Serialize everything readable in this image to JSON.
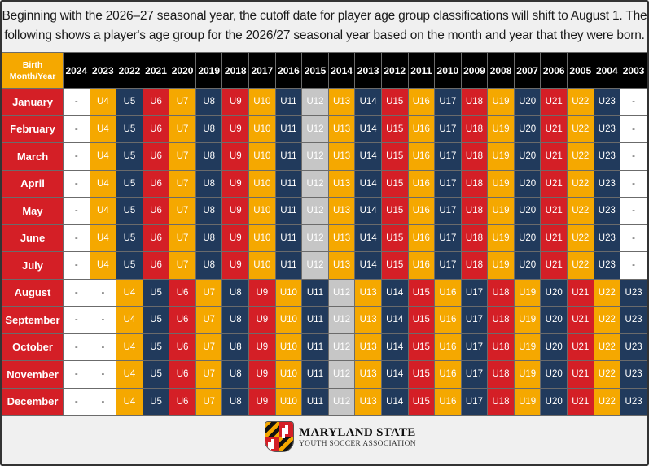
{
  "title_line1": "Beginning with the 2026–27 seasonal year, the cutoff date for player age group classifications will shift to August 1. The",
  "title_line2": "following shows a player's age group for the 2026/27 seasonal year based on the month and year that they were born.",
  "table": {
    "corner_label_line1": "Birth",
    "corner_label_line2": "Month/Year",
    "years": [
      "2024",
      "2023",
      "2022",
      "2021",
      "2020",
      "2019",
      "2018",
      "2017",
      "2016",
      "2015",
      "2014",
      "2013",
      "2012",
      "2011",
      "2010",
      "2009",
      "2008",
      "2007",
      "2006",
      "2005",
      "2004",
      "2003"
    ],
    "rows": [
      {
        "month": "January",
        "values": [
          "-",
          "U4",
          "U5",
          "U6",
          "U7",
          "U8",
          "U9",
          "U10",
          "U11",
          "U12",
          "U13",
          "U14",
          "U15",
          "U16",
          "U17",
          "U18",
          "U19",
          "U20",
          "U21",
          "U22",
          "U23",
          "-"
        ]
      },
      {
        "month": "February",
        "values": [
          "-",
          "U4",
          "U5",
          "U6",
          "U7",
          "U8",
          "U9",
          "U10",
          "U11",
          "U12",
          "U13",
          "U14",
          "U15",
          "U16",
          "U17",
          "U18",
          "U19",
          "U20",
          "U21",
          "U22",
          "U23",
          "-"
        ]
      },
      {
        "month": "March",
        "values": [
          "-",
          "U4",
          "U5",
          "U6",
          "U7",
          "U8",
          "U9",
          "U10",
          "U11",
          "U12",
          "U13",
          "U14",
          "U15",
          "U16",
          "U17",
          "U18",
          "U19",
          "U20",
          "U21",
          "U22",
          "U23",
          "-"
        ]
      },
      {
        "month": "April",
        "values": [
          "-",
          "U4",
          "U5",
          "U6",
          "U7",
          "U8",
          "U9",
          "U10",
          "U11",
          "U12",
          "U13",
          "U14",
          "U15",
          "U16",
          "U17",
          "U18",
          "U19",
          "U20",
          "U21",
          "U22",
          "U23",
          "-"
        ]
      },
      {
        "month": "May",
        "values": [
          "-",
          "U4",
          "U5",
          "U6",
          "U7",
          "U8",
          "U9",
          "U10",
          "U11",
          "U12",
          "U13",
          "U14",
          "U15",
          "U16",
          "U17",
          "U18",
          "U19",
          "U20",
          "U21",
          "U22",
          "U23",
          "-"
        ]
      },
      {
        "month": "June",
        "values": [
          "-",
          "U4",
          "U5",
          "U6",
          "U7",
          "U8",
          "U9",
          "U10",
          "U11",
          "U12",
          "U13",
          "U14",
          "U15",
          "U16",
          "U17",
          "U18",
          "U19",
          "U20",
          "U21",
          "U22",
          "U23",
          "-"
        ]
      },
      {
        "month": "July",
        "values": [
          "-",
          "U4",
          "U5",
          "U6",
          "U7",
          "U8",
          "U9",
          "U10",
          "U11",
          "U12",
          "U13",
          "U14",
          "U15",
          "U16",
          "U17",
          "U18",
          "U19",
          "U20",
          "U21",
          "U22",
          "U23",
          "-"
        ]
      },
      {
        "month": "August",
        "values": [
          "-",
          "-",
          "U4",
          "U5",
          "U6",
          "U7",
          "U8",
          "U9",
          "U10",
          "U11",
          "U12",
          "U13",
          "U14",
          "U15",
          "U16",
          "U17",
          "U18",
          "U19",
          "U20",
          "U21",
          "U22",
          "U23"
        ]
      },
      {
        "month": "September",
        "values": [
          "-",
          "-",
          "U4",
          "U5",
          "U6",
          "U7",
          "U8",
          "U9",
          "U10",
          "U11",
          "U12",
          "U13",
          "U14",
          "U15",
          "U16",
          "U17",
          "U18",
          "U19",
          "U20",
          "U21",
          "U22",
          "U23"
        ]
      },
      {
        "month": "October",
        "values": [
          "-",
          "-",
          "U4",
          "U5",
          "U6",
          "U7",
          "U8",
          "U9",
          "U10",
          "U11",
          "U12",
          "U13",
          "U14",
          "U15",
          "U16",
          "U17",
          "U18",
          "U19",
          "U20",
          "U21",
          "U22",
          "U23"
        ]
      },
      {
        "month": "November",
        "values": [
          "-",
          "-",
          "U4",
          "U5",
          "U6",
          "U7",
          "U8",
          "U9",
          "U10",
          "U11",
          "U12",
          "U13",
          "U14",
          "U15",
          "U16",
          "U17",
          "U18",
          "U19",
          "U20",
          "U21",
          "U22",
          "U23"
        ]
      },
      {
        "month": "December",
        "values": [
          "-",
          "-",
          "U4",
          "U5",
          "U6",
          "U7",
          "U8",
          "U9",
          "U10",
          "U11",
          "U12",
          "U13",
          "U14",
          "U15",
          "U16",
          "U17",
          "U18",
          "U19",
          "U20",
          "U21",
          "U22",
          "U23"
        ]
      }
    ]
  },
  "colors": {
    "orange": "#f5a800",
    "navy": "#213a5c",
    "red": "#d41f26",
    "gray": "#c6c6c6"
  },
  "logo": {
    "name_line1": "MARYLAND STATE",
    "name_line2": "YOUTH SOCCER ASSOCIATION"
  }
}
